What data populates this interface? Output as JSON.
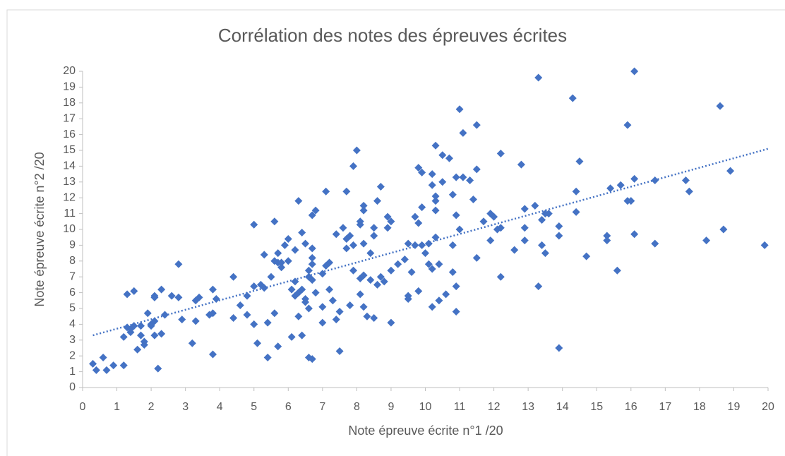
{
  "chart_data": {
    "type": "scatter",
    "title": "Corrélation des notes des épreuves écrites",
    "x_label": "Note épreuve écrite n°1 /20",
    "y_label": "Note épreuve écrite n°2 /20",
    "xlim": [
      0,
      20
    ],
    "ylim": [
      0,
      20
    ],
    "xticks": [
      0,
      1,
      2,
      3,
      4,
      5,
      6,
      7,
      8,
      9,
      10,
      11,
      12,
      13,
      14,
      15,
      16,
      17,
      18,
      19,
      20
    ],
    "yticks": [
      0,
      1,
      2,
      3,
      4,
      5,
      6,
      7,
      8,
      9,
      10,
      11,
      12,
      13,
      14,
      15,
      16,
      17,
      18,
      19,
      20
    ],
    "color": "#4472c4",
    "x": [
      0.3,
      0.4,
      0.6,
      0.7,
      0.9,
      1.2,
      1.2,
      1.3,
      1.3,
      1.4,
      1.4,
      1.5,
      1.5,
      1.6,
      1.7,
      1.7,
      1.8,
      1.8,
      1.9,
      2.0,
      2.0,
      2.1,
      2.1,
      2.1,
      2.1,
      2.2,
      2.3,
      2.3,
      2.4,
      2.6,
      2.8,
      2.8,
      2.9,
      3.2,
      3.3,
      3.3,
      3.4,
      3.7,
      3.8,
      3.8,
      3.8,
      3.9,
      4.4,
      4.4,
      4.6,
      4.8,
      4.8,
      5.0,
      5.0,
      5.0,
      5.1,
      5.2,
      5.3,
      5.3,
      5.4,
      5.4,
      5.5,
      5.6,
      5.6,
      5.6,
      5.7,
      5.7,
      5.7,
      5.8,
      5.8,
      5.9,
      6.0,
      6.0,
      6.1,
      6.1,
      6.2,
      6.2,
      6.2,
      6.3,
      6.3,
      6.3,
      6.4,
      6.4,
      6.4,
      6.5,
      6.5,
      6.5,
      6.6,
      6.6,
      6.6,
      6.6,
      6.7,
      6.7,
      6.7,
      6.7,
      6.7,
      6.7,
      6.8,
      6.8,
      7.0,
      7.0,
      7.0,
      7.1,
      7.1,
      7.2,
      7.2,
      7.3,
      7.4,
      7.4,
      7.5,
      7.5,
      7.6,
      7.7,
      7.7,
      7.7,
      7.8,
      7.8,
      7.9,
      7.9,
      7.9,
      8.0,
      8.1,
      8.1,
      8.1,
      8.2,
      8.2,
      8.2,
      8.2,
      8.2,
      8.3,
      8.4,
      8.4,
      8.5,
      8.5,
      8.5,
      8.6,
      8.6,
      8.7,
      8.7,
      8.8,
      8.9,
      8.9,
      9.0,
      9.0,
      9.0,
      9.2,
      9.4,
      9.5,
      9.5,
      9.5,
      9.6,
      9.7,
      9.7,
      9.8,
      9.8,
      9.8,
      9.9,
      9.9,
      9.9,
      10.0,
      10.1,
      10.1,
      10.2,
      10.2,
      10.2,
      10.2,
      10.3,
      10.3,
      10.3,
      10.3,
      10.3,
      10.4,
      10.4,
      10.5,
      10.5,
      10.6,
      10.7,
      10.8,
      10.8,
      10.8,
      10.9,
      10.9,
      10.9,
      10.9,
      11.0,
      11.0,
      11.1,
      11.1,
      11.3,
      11.4,
      11.5,
      11.5,
      11.5,
      11.7,
      11.9,
      11.9,
      12.0,
      12.1,
      12.2,
      12.2,
      12.2,
      12.6,
      12.8,
      12.9,
      12.9,
      12.9,
      13.2,
      13.3,
      13.3,
      13.4,
      13.4,
      13.5,
      13.6,
      13.5,
      13.9,
      13.9,
      13.9,
      14.3,
      14.4,
      14.5,
      14.4,
      14.7,
      15.3,
      15.3,
      15.4,
      15.6,
      15.7,
      15.9,
      15.9,
      16.0,
      16.1,
      16.1,
      16.1,
      16.7,
      16.7,
      17.6,
      17.7,
      18.2,
      18.6,
      18.7,
      18.9,
      19.9,
      8.1
    ],
    "values": [
      1.5,
      1.1,
      1.9,
      1.1,
      1.4,
      1.4,
      3.2,
      3.8,
      5.9,
      3.5,
      3.7,
      6.1,
      3.9,
      2.4,
      3.9,
      3.3,
      2.7,
      2.9,
      4.7,
      4.0,
      3.9,
      5.8,
      5.7,
      4.2,
      3.3,
      1.2,
      3.4,
      6.2,
      4.6,
      5.8,
      5.7,
      7.8,
      4.3,
      2.8,
      4.2,
      5.5,
      5.7,
      4.6,
      6.2,
      4.7,
      2.1,
      5.6,
      7.0,
      4.4,
      5.2,
      5.8,
      4.6,
      6.4,
      10.3,
      4.0,
      2.8,
      6.5,
      6.3,
      8.4,
      4.1,
      1.9,
      7.0,
      4.7,
      10.5,
      8.0,
      2.6,
      7.9,
      8.5,
      7.6,
      7.9,
      9.0,
      8.0,
      9.4,
      6.2,
      3.2,
      6.7,
      5.8,
      8.7,
      11.8,
      4.5,
      6.0,
      3.3,
      6.2,
      9.8,
      5.6,
      9.1,
      5.4,
      5.0,
      7.0,
      7.4,
      1.9,
      1.8,
      7.8,
      8.2,
      8.8,
      6.8,
      10.9,
      11.2,
      6.0,
      5.1,
      7.2,
      4.1,
      12.4,
      7.7,
      6.2,
      7.9,
      5.5,
      9.7,
      4.3,
      2.3,
      4.8,
      10.1,
      12.4,
      8.8,
      9.4,
      5.2,
      9.6,
      14.0,
      7.4,
      9.0,
      15.0,
      6.9,
      10.3,
      10.5,
      11.5,
      11.2,
      9.1,
      7.1,
      5.1,
      4.5,
      6.8,
      8.5,
      10.1,
      9.6,
      4.4,
      11.8,
      6.5,
      12.7,
      7.0,
      6.7,
      10.8,
      10.1,
      4.1,
      7.4,
      10.5,
      7.8,
      8.1,
      9.1,
      5.6,
      5.8,
      7.3,
      10.8,
      9.0,
      13.9,
      10.4,
      6.1,
      13.6,
      11.4,
      9.0,
      8.5,
      9.1,
      7.8,
      13.5,
      12.8,
      7.5,
      5.1,
      15.3,
      12.1,
      11.8,
      11.2,
      9.5,
      7.8,
      5.5,
      14.7,
      13.0,
      5.9,
      14.5,
      12.2,
      9.0,
      7.3,
      13.3,
      10.9,
      6.4,
      4.8,
      17.6,
      10.0,
      16.1,
      13.3,
      13.1,
      11.9,
      16.6,
      13.8,
      8.2,
      10.5,
      11.0,
      9.3,
      10.8,
      10.0,
      14.8,
      10.1,
      7.0,
      8.7,
      14.1,
      11.3,
      10.1,
      9.3,
      11.5,
      19.6,
      6.4,
      10.6,
      9.0,
      8.5,
      11.0,
      11.0,
      2.5,
      9.6,
      10.2,
      18.3,
      12.4,
      14.3,
      11.1,
      8.3,
      9.6,
      9.3,
      12.6,
      7.4,
      12.8,
      11.8,
      16.6,
      11.8,
      20.0,
      13.2,
      9.7,
      13.1,
      9.1,
      13.1,
      12.4,
      9.3,
      17.8,
      10.0,
      13.7,
      9.0,
      5.9
    ],
    "trendline": {
      "x": [
        0.3,
        20
      ],
      "values": [
        3.3,
        15.1
      ]
    }
  }
}
